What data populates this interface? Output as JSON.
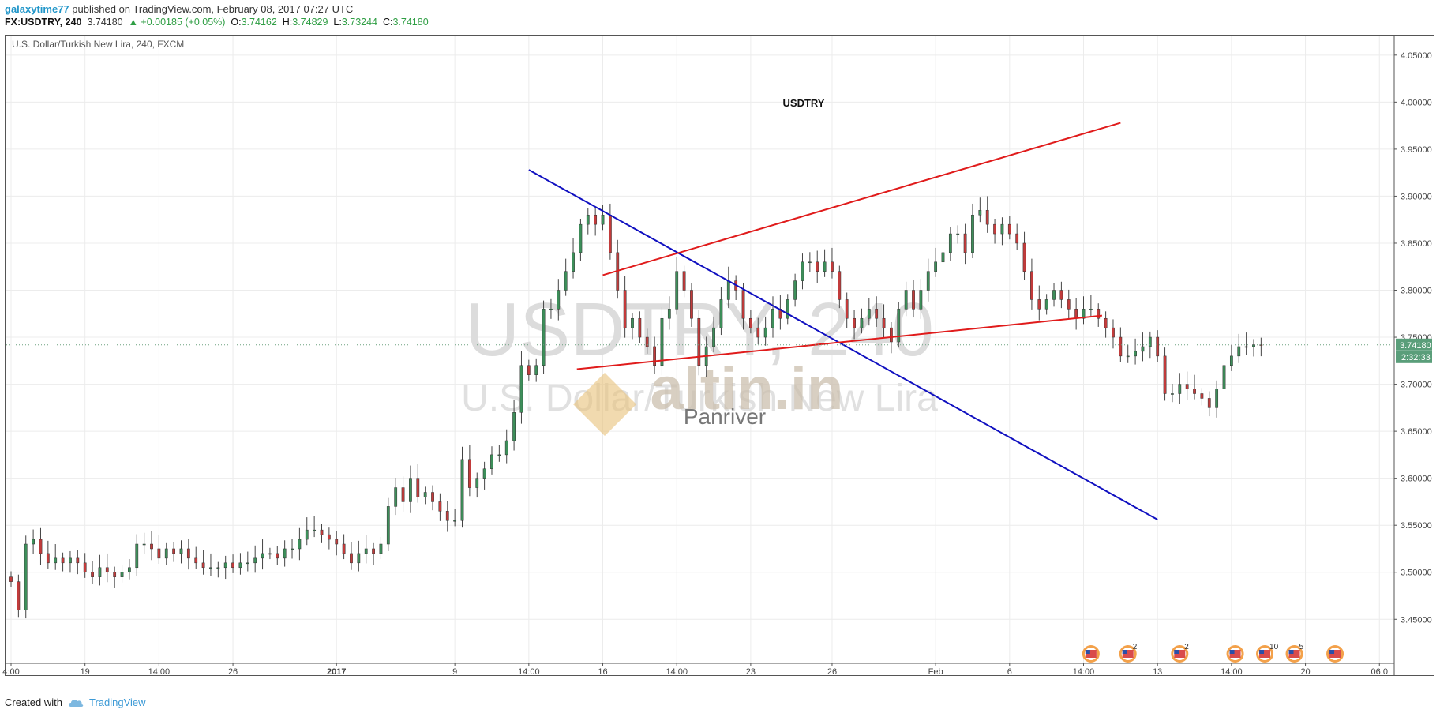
{
  "header": {
    "author": "galaxytime77",
    "published": "published on TradingView.com, February 08, 2017 07:27 UTC",
    "symbol": "FX:USDTRY, 240",
    "last": "3.74180",
    "change": "▲ +0.00185 (+0.05%)",
    "o_label": "O:",
    "o": "3.74162",
    "h_label": "H:",
    "h": "3.74829",
    "l_label": "L:",
    "l": "3.73244",
    "c_label": "C:",
    "c": "3.74180"
  },
  "footer": {
    "created_with": "Created with",
    "brand": "TradingView"
  },
  "colors": {
    "bull": "#3d8f5a",
    "bear": "#c23b3b",
    "trend_red": "#e01b1b",
    "trend_blue": "#1010c0",
    "price_tag": "#5a9e7a"
  },
  "chart_data": {
    "type": "candlestick",
    "title": "U.S. Dollar/Turkish New Lira, 240, FXCM",
    "annotation": "USDTRY",
    "watermark_symbol": "USDTRY, 240",
    "watermark_name": "U.S. Dollar/Turkish New Lira",
    "watermark_logo": "altin.in",
    "watermark_author": "Panriver",
    "ylim": [
      3.42,
      4.07
    ],
    "y_ticks": [
      "4.05000",
      "4.00000",
      "3.95000",
      "3.90000",
      "3.85000",
      "3.80000",
      "3.75000",
      "3.70000",
      "3.65000",
      "3.60000",
      "3.55000",
      "3.50000",
      "3.45000"
    ],
    "y_tick_values": [
      4.05,
      4.0,
      3.95,
      3.9,
      3.85,
      3.8,
      3.75,
      3.7,
      3.65,
      3.6,
      3.55,
      3.5,
      3.45
    ],
    "x_ticks": [
      "4:00",
      "19",
      "14:00",
      "26",
      "2017",
      "9",
      "14:00",
      "16",
      "14:00",
      "23",
      "26",
      "Feb",
      "6",
      "14:00",
      "13",
      "14:00",
      "20",
      "06:0"
    ],
    "x_tick_index": [
      0,
      20,
      40,
      60,
      88,
      120,
      140,
      160,
      180,
      200,
      222,
      250,
      270,
      290,
      310,
      330,
      350,
      370
    ],
    "last_price": "3.74180",
    "last_price_value": 3.7418,
    "countdown": "2:32:33",
    "grid": true,
    "event_badges": [
      "",
      "2",
      "2",
      "",
      "10",
      "5",
      ""
    ],
    "event_badge_index": [
      292,
      302,
      316,
      331,
      339,
      347,
      358
    ],
    "candles_close": [
      3.49,
      3.46,
      3.53,
      3.535,
      3.52,
      3.51,
      3.515,
      3.51,
      3.515,
      3.51,
      3.5,
      3.495,
      3.505,
      3.5,
      3.495,
      3.5,
      3.505,
      3.53,
      3.53,
      3.525,
      3.515,
      3.525,
      3.52,
      3.525,
      3.515,
      3.51,
      3.505,
      3.505,
      3.505,
      3.51,
      3.505,
      3.51,
      3.51,
      3.515,
      3.52,
      3.52,
      3.515,
      3.525,
      3.525,
      3.535,
      3.545,
      3.545,
      3.54,
      3.535,
      3.53,
      3.52,
      3.51,
      3.52,
      3.525,
      3.52,
      3.53,
      3.57,
      3.59,
      3.575,
      3.6,
      3.58,
      3.585,
      3.575,
      3.565,
      3.555,
      3.555,
      3.62,
      3.59,
      3.6,
      3.61,
      3.625,
      3.625,
      3.64,
      3.67,
      3.72,
      3.71,
      3.72,
      3.78,
      3.78,
      3.8,
      3.82,
      3.84,
      3.87,
      3.88,
      3.87,
      3.88,
      3.84,
      3.8,
      3.76,
      3.77,
      3.75,
      3.74,
      3.72,
      3.77,
      3.78,
      3.82,
      3.8,
      3.77,
      3.72,
      3.74,
      3.76,
      3.79,
      3.81,
      3.8,
      3.77,
      3.76,
      3.75,
      3.76,
      3.78,
      3.77,
      3.79,
      3.81,
      3.83,
      3.83,
      3.82,
      3.83,
      3.82,
      3.79,
      3.77,
      3.76,
      3.77,
      3.78,
      3.77,
      3.76,
      3.745,
      3.78,
      3.8,
      3.78,
      3.8,
      3.82,
      3.83,
      3.84,
      3.86,
      3.86,
      3.84,
      3.88,
      3.885,
      3.87,
      3.86,
      3.87,
      3.86,
      3.85,
      3.82,
      3.79,
      3.78,
      3.79,
      3.8,
      3.79,
      3.78,
      3.77,
      3.78,
      3.78,
      3.77,
      3.76,
      3.75,
      3.73,
      3.73,
      3.735,
      3.74,
      3.75,
      3.73,
      3.69,
      3.69,
      3.7,
      3.695,
      3.69,
      3.685,
      3.675,
      3.695,
      3.72,
      3.73,
      3.74,
      3.74,
      3.742,
      3.7418
    ],
    "candles_per_group": 1,
    "trendlines": [
      {
        "name": "blue-resistance",
        "color": "blue",
        "from": [
          140,
          3.928
        ],
        "to": [
          310,
          3.556
        ]
      },
      {
        "name": "red-upper",
        "color": "red",
        "from": [
          160,
          3.816
        ],
        "to": [
          300,
          3.978
        ]
      },
      {
        "name": "red-lower",
        "color": "red",
        "from": [
          153,
          3.716
        ],
        "to": [
          295,
          3.773
        ]
      }
    ]
  }
}
